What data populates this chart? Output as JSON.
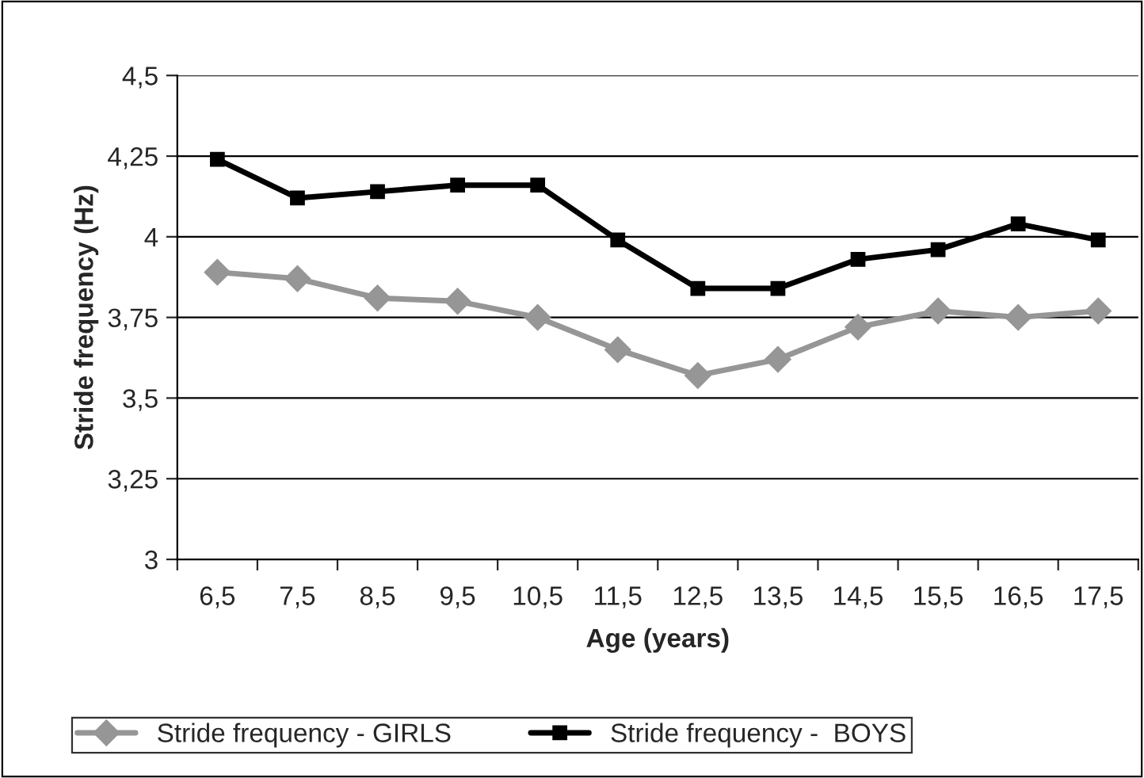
{
  "chart_data": {
    "type": "line",
    "xlabel": "Age (years)",
    "ylabel": "Stride frequency (Hz)",
    "categories": [
      "6,5",
      "7,5",
      "8,5",
      "9,5",
      "10,5",
      "11,5",
      "12,5",
      "13,5",
      "14,5",
      "15,5",
      "16,5",
      "17,5"
    ],
    "series": [
      {
        "name": "Stride frequency - GIRLS",
        "color": "#969696",
        "marker": "diamond",
        "values": [
          3.89,
          3.87,
          3.81,
          3.8,
          3.75,
          3.65,
          3.57,
          3.62,
          3.72,
          3.77,
          3.75,
          3.77
        ]
      },
      {
        "name": "Stride frequency -  BOYS",
        "color": "#000000",
        "marker": "square",
        "values": [
          4.24,
          4.12,
          4.14,
          4.16,
          4.16,
          3.99,
          3.84,
          3.84,
          3.93,
          3.96,
          4.04,
          3.99
        ]
      }
    ],
    "ylim": [
      3,
      4.5
    ],
    "yticks": [
      3,
      {
        "value": 3.25,
        "label": "3,25"
      },
      {
        "value": 3.5,
        "label": "3,5"
      },
      {
        "value": 3.75,
        "label": "3,75"
      },
      4,
      {
        "value": 4.25,
        "label": "4,25"
      },
      {
        "value": 4.5,
        "label": "4,5"
      }
    ],
    "grid": "y",
    "legend": "bottom",
    "line_style": "solid"
  }
}
